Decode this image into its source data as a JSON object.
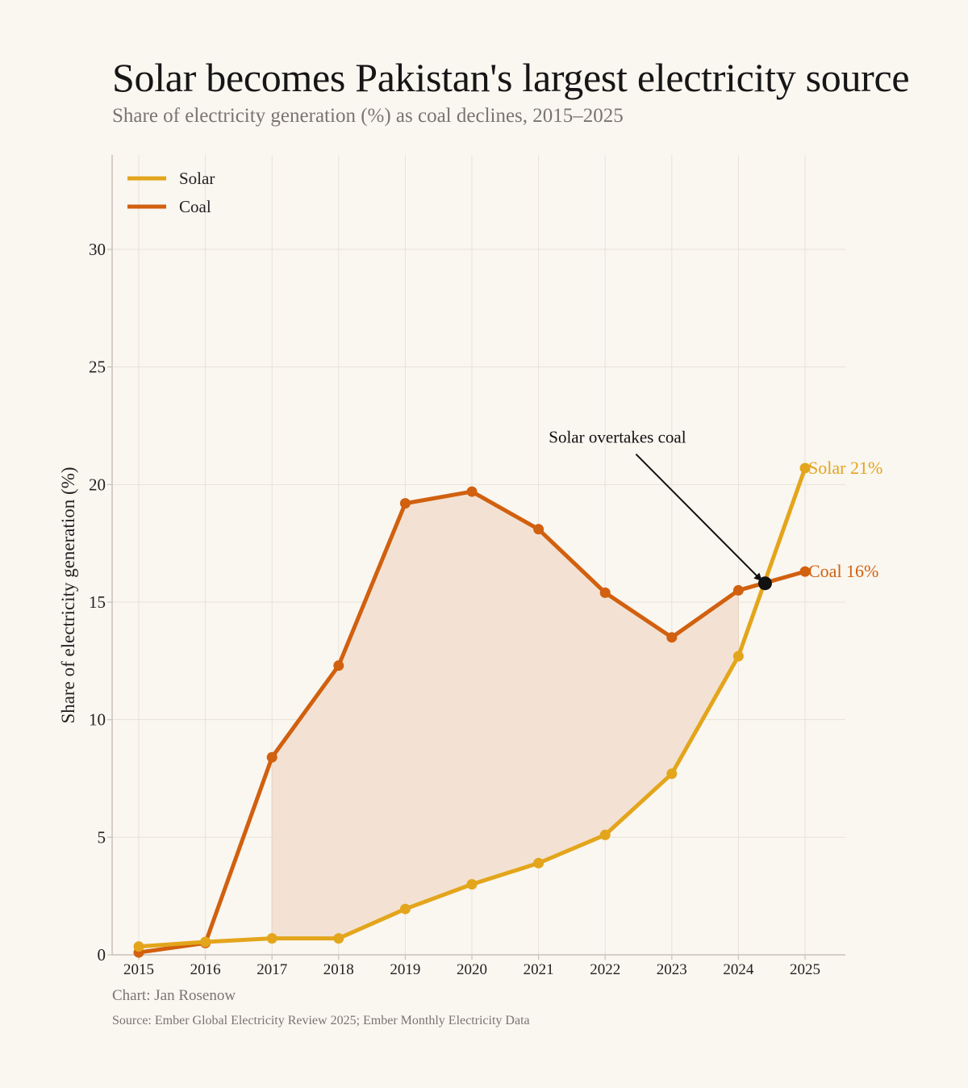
{
  "header": {
    "title": "Solar becomes Pakistan's largest electricity source",
    "subtitle": "Share of electricity generation (%) as coal declines, 2015–2025"
  },
  "footer": {
    "credit": "Chart: Jan Rosenow",
    "source": "Source: Ember Global Electricity Review 2025; Ember Monthly Electricity Data"
  },
  "colors": {
    "background": "#faf6f0",
    "solar": "#e3a51b",
    "coal": "#d1600f",
    "fill": "#f2e0cf",
    "grid": "#e9e2da",
    "axis": "#c9c1b8",
    "crossover_marker": "#111111"
  },
  "chart_data": {
    "type": "line",
    "title": "Solar becomes Pakistan's largest electricity source",
    "subtitle": "Share of electricity generation (%) as coal declines, 2015–2025",
    "xlabel": "",
    "ylabel": "Share of electricity generation (%)",
    "x": [
      2015,
      2016,
      2017,
      2018,
      2019,
      2020,
      2021,
      2022,
      2023,
      2024,
      2025
    ],
    "x_tick_labels": [
      "2015",
      "2016",
      "2017",
      "2018",
      "2019",
      "2020",
      "2021",
      "2022",
      "2023",
      "2024",
      "2025"
    ],
    "ylim": [
      0,
      34
    ],
    "y_ticks": [
      0,
      5,
      10,
      15,
      20,
      25,
      30
    ],
    "y_tick_labels": [
      "0",
      "5",
      "10",
      "15",
      "20",
      "25",
      "30"
    ],
    "grid": true,
    "legend_position": "top-left",
    "series": [
      {
        "name": "Solar",
        "color": "#e3a51b",
        "values": [
          0.35,
          0.55,
          0.7,
          0.7,
          1.95,
          3.0,
          3.9,
          5.1,
          7.7,
          12.7,
          20.7
        ],
        "end_label": "Solar  21%"
      },
      {
        "name": "Coal",
        "color": "#d1600f",
        "values": [
          0.1,
          0.5,
          8.4,
          12.3,
          19.2,
          19.7,
          18.1,
          15.4,
          13.5,
          15.5,
          16.3
        ],
        "end_label": "Coal  16%"
      }
    ],
    "shaded_gap": {
      "between": [
        "Coal",
        "Solar"
      ],
      "from_x": 2017,
      "to_x": 2024
    },
    "annotation": {
      "text": "Solar overtakes coal",
      "point": {
        "x": 2024.4,
        "y": 15.8
      }
    }
  }
}
